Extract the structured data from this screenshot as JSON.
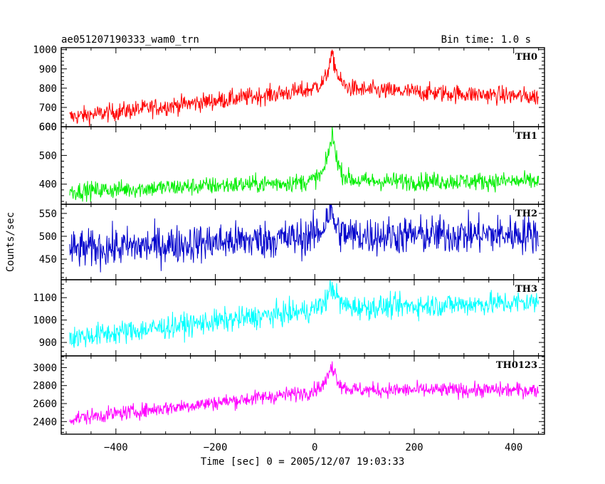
{
  "header": {
    "source_name": "ae051207190333_wam0_trn",
    "bin_time": "Bin time: 1.0 s"
  },
  "chart_data": {
    "type": "line",
    "title": "ae051207190333_wam0_trn",
    "xlabel": "Time [sec] 0 = 2005/12/07 19:03:33",
    "ylabel": "Counts/sec",
    "xlim": [
      -510,
      462
    ],
    "x_ticks": [
      -400,
      -200,
      0,
      200,
      400
    ],
    "x_tick_labels": [
      "−400",
      "−200",
      "0",
      "200",
      "400"
    ],
    "x_range": [
      -493,
      450
    ],
    "grid": false,
    "panels": [
      {
        "name": "TH0",
        "color": "#ff0000",
        "ylim": [
          600,
          1010
        ],
        "y_ticks": [
          600,
          700,
          800,
          900,
          1000
        ],
        "baseline_start": 650,
        "baseline_end": 755,
        "post_level": 800,
        "noise_amp": 45,
        "peak_value": 1000,
        "peak_time": 35
      },
      {
        "name": "TH1",
        "color": "#00ee00",
        "ylim": [
          330,
          600
        ],
        "y_ticks": [
          400,
          500,
          600
        ],
        "baseline_start": 375,
        "baseline_end": 410,
        "post_level": 410,
        "noise_amp": 30,
        "peak_value": 600,
        "peak_time": 35
      },
      {
        "name": "TH2",
        "color": "#0000cc",
        "ylim": [
          405,
          570
        ],
        "y_ticks": [
          450,
          500,
          550
        ],
        "baseline_start": 470,
        "baseline_end": 505,
        "post_level": 500,
        "noise_amp": 40,
        "peak_value": 570,
        "peak_time": 30
      },
      {
        "name": "TH3",
        "color": "#00ffff",
        "ylim": [
          840,
          1180
        ],
        "y_ticks": [
          900,
          1000,
          1100
        ],
        "baseline_start": 920,
        "baseline_end": 1080,
        "post_level": 1050,
        "noise_amp": 50,
        "peak_value": 1170,
        "peak_time": 35
      },
      {
        "name": "TH0123",
        "color": "#ff00ff",
        "ylim": [
          2260,
          3130
        ],
        "y_ticks": [
          2400,
          2600,
          2800,
          3000
        ],
        "baseline_start": 2430,
        "baseline_end": 2750,
        "post_level": 2750,
        "noise_amp": 80,
        "peak_value": 3070,
        "peak_time": 35
      }
    ]
  }
}
